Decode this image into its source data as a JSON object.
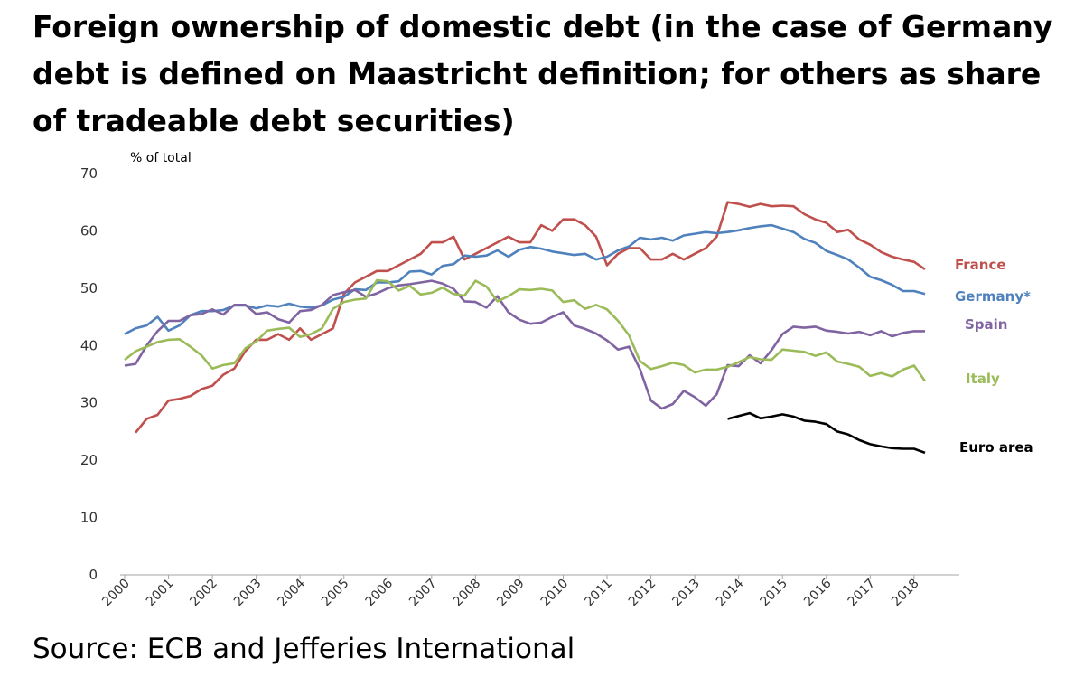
{
  "title": "Foreign ownership of domestic debt (in the case of Germany debt is defined on Maastricht definition; for others as share of tradeable debt securities)",
  "source": "Source: ECB and Jefferies International",
  "chart_data": {
    "type": "line",
    "ylabel": "% of total",
    "ylim": [
      0,
      70
    ],
    "yticks": [
      0,
      10,
      20,
      30,
      40,
      50,
      60,
      70
    ],
    "xlim": [
      2000,
      2018.8
    ],
    "xticks": [
      "2000",
      "2001",
      "2002",
      "2003",
      "2004",
      "2005",
      "2006",
      "2007",
      "2008",
      "2009",
      "2010",
      "2011",
      "2012",
      "2013",
      "2014",
      "2015",
      "2016",
      "2017",
      "2018"
    ],
    "grid": false,
    "legend": "labels at line ends (right)",
    "series": [
      {
        "name": "France",
        "color": "#c0504d",
        "x": [
          2000.25,
          2000.5,
          2000.75,
          2001.0,
          2001.25,
          2001.5,
          2001.75,
          2002.0,
          2002.25,
          2002.5,
          2002.75,
          2003.0,
          2003.25,
          2003.5,
          2003.75,
          2004.0,
          2004.25,
          2004.5,
          2004.75,
          2005.0,
          2005.25,
          2005.5,
          2005.75,
          2006.0,
          2006.25,
          2006.5,
          2006.75,
          2007.0,
          2007.25,
          2007.5,
          2007.75,
          2008.0,
          2008.25,
          2008.5,
          2008.75,
          2009.0,
          2009.25,
          2009.5,
          2009.75,
          2010.0,
          2010.25,
          2010.5,
          2010.75,
          2011.0,
          2011.25,
          2011.5,
          2011.75,
          2012.0,
          2012.25,
          2012.5,
          2012.75,
          2013.0,
          2013.25,
          2013.5,
          2013.75,
          2014.0,
          2014.25,
          2014.5,
          2014.75,
          2015.0,
          2015.25,
          2015.5,
          2015.75,
          2016.0,
          2016.25,
          2016.5,
          2016.75,
          2017.0,
          2017.25,
          2017.5,
          2017.75,
          2018.0,
          2018.25
        ],
        "y": [
          24.8,
          27.2,
          27.9,
          30.4,
          30.7,
          31.2,
          32.4,
          33.0,
          34.9,
          36.0,
          39.0,
          41.0,
          41.0,
          42.0,
          41.0,
          43.0,
          41.0,
          42.0,
          43.0,
          49.0,
          51.0,
          52.0,
          53.0,
          53.0,
          54.0,
          55.0,
          56.0,
          58.0,
          58.0,
          59.0,
          55.0,
          56.0,
          57.0,
          58.0,
          59.0,
          58.0,
          58.0,
          61.0,
          60.0,
          62.0,
          62.0,
          61.0,
          59.0,
          54.0,
          56.0,
          57.0,
          57.0,
          55.0,
          55.0,
          56.0,
          55.0,
          56.0,
          57.0,
          59.0,
          65.0,
          64.7,
          64.2,
          64.7,
          64.3,
          64.4,
          64.3,
          62.9,
          62.0,
          61.4,
          59.8,
          60.2,
          58.5,
          57.6,
          56.3,
          55.5,
          55.0,
          54.6,
          53.3
        ]
      },
      {
        "name": "Germany*",
        "color": "#4f81bd",
        "x": [
          2000.0,
          2000.25,
          2000.5,
          2000.75,
          2001.0,
          2001.25,
          2001.5,
          2001.75,
          2002.0,
          2002.25,
          2002.5,
          2002.75,
          2003.0,
          2003.25,
          2003.5,
          2003.75,
          2004.0,
          2004.25,
          2004.5,
          2004.75,
          2005.0,
          2005.25,
          2005.5,
          2005.75,
          2006.0,
          2006.25,
          2006.5,
          2006.75,
          2007.0,
          2007.25,
          2007.5,
          2007.75,
          2008.0,
          2008.25,
          2008.5,
          2008.75,
          2009.0,
          2009.25,
          2009.5,
          2009.75,
          2010.0,
          2010.25,
          2010.5,
          2010.75,
          2011.0,
          2011.25,
          2011.5,
          2011.75,
          2012.0,
          2012.25,
          2012.5,
          2012.75,
          2013.0,
          2013.25,
          2013.5,
          2013.75,
          2014.0,
          2014.25,
          2014.5,
          2014.75,
          2015.0,
          2015.25,
          2015.5,
          2015.75,
          2016.0,
          2016.25,
          2016.5,
          2016.75,
          2017.0,
          2017.25,
          2017.5,
          2017.75,
          2018.0,
          2018.25
        ],
        "y": [
          42.0,
          43.0,
          43.5,
          45.0,
          42.6,
          43.5,
          45.3,
          46.0,
          46.0,
          46.2,
          47.0,
          47.0,
          46.5,
          47.0,
          46.8,
          47.3,
          46.8,
          46.6,
          47.0,
          48.0,
          48.5,
          49.8,
          49.7,
          51.0,
          51.0,
          51.2,
          52.9,
          53.0,
          52.4,
          53.9,
          54.2,
          55.7,
          55.5,
          55.7,
          56.6,
          55.5,
          56.7,
          57.2,
          56.9,
          56.4,
          56.1,
          55.8,
          56.0,
          55.0,
          55.5,
          56.6,
          57.3,
          58.8,
          58.5,
          58.8,
          58.3,
          59.2,
          59.5,
          59.8,
          59.6,
          59.8,
          60.1,
          60.5,
          60.8,
          61.0,
          60.4,
          59.8,
          58.6,
          57.9,
          56.5,
          55.8,
          55.0,
          53.6,
          52.0,
          51.4,
          50.6,
          49.5,
          49.5,
          49.0
        ]
      },
      {
        "name": "Spain",
        "color": "#8064a2",
        "x": [
          2000.0,
          2000.25,
          2000.5,
          2000.75,
          2001.0,
          2001.25,
          2001.5,
          2001.75,
          2002.0,
          2002.25,
          2002.5,
          2002.75,
          2003.0,
          2003.25,
          2003.5,
          2003.75,
          2004.0,
          2004.25,
          2004.5,
          2004.75,
          2005.0,
          2005.25,
          2005.5,
          2005.75,
          2006.0,
          2006.25,
          2006.5,
          2006.75,
          2007.0,
          2007.25,
          2007.5,
          2007.75,
          2008.0,
          2008.25,
          2008.5,
          2008.75,
          2009.0,
          2009.25,
          2009.5,
          2009.75,
          2010.0,
          2010.25,
          2010.5,
          2010.75,
          2011.0,
          2011.25,
          2011.5,
          2011.75,
          2012.0,
          2012.25,
          2012.5,
          2012.75,
          2013.0,
          2013.25,
          2013.5,
          2013.75,
          2014.0,
          2014.25,
          2014.5,
          2014.75,
          2015.0,
          2015.25,
          2015.5,
          2015.75,
          2016.0,
          2016.25,
          2016.5,
          2016.75,
          2017.0,
          2017.25,
          2017.5,
          2017.75,
          2018.0,
          2018.25
        ],
        "y": [
          36.5,
          36.8,
          40.0,
          42.5,
          44.3,
          44.3,
          45.3,
          45.5,
          46.3,
          45.4,
          47.1,
          47.1,
          45.5,
          45.8,
          44.6,
          44.0,
          46.0,
          46.2,
          47.1,
          48.8,
          49.3,
          49.7,
          48.5,
          49.1,
          50.0,
          50.5,
          50.7,
          51.0,
          51.3,
          50.8,
          49.9,
          47.7,
          47.6,
          46.6,
          48.6,
          45.8,
          44.5,
          43.8,
          44.0,
          45.0,
          45.8,
          43.5,
          42.9,
          42.1,
          40.9,
          39.3,
          39.8,
          35.9,
          30.4,
          29.0,
          29.8,
          32.1,
          31.0,
          29.5,
          31.5,
          36.6,
          36.4,
          38.3,
          36.9,
          39.2,
          42.0,
          43.3,
          43.1,
          43.3,
          42.6,
          42.4,
          42.1,
          42.4,
          41.8,
          42.5,
          41.6,
          42.2,
          42.5,
          42.5
        ]
      },
      {
        "name": "Italy",
        "color": "#9bbb59",
        "x": [
          2000.0,
          2000.25,
          2000.5,
          2000.75,
          2001.0,
          2001.25,
          2001.5,
          2001.75,
          2002.0,
          2002.25,
          2002.5,
          2002.75,
          2003.0,
          2003.25,
          2003.5,
          2003.75,
          2004.0,
          2004.25,
          2004.5,
          2004.75,
          2005.0,
          2005.25,
          2005.5,
          2005.75,
          2006.0,
          2006.25,
          2006.5,
          2006.75,
          2007.0,
          2007.25,
          2007.5,
          2007.75,
          2008.0,
          2008.25,
          2008.5,
          2008.75,
          2009.0,
          2009.25,
          2009.5,
          2009.75,
          2010.0,
          2010.25,
          2010.5,
          2010.75,
          2011.0,
          2011.25,
          2011.5,
          2011.75,
          2012.0,
          2012.25,
          2012.5,
          2012.75,
          2013.0,
          2013.25,
          2013.5,
          2013.75,
          2014.0,
          2014.25,
          2014.5,
          2014.75,
          2015.0,
          2015.25,
          2015.5,
          2015.75,
          2016.0,
          2016.25,
          2016.5,
          2016.75,
          2017.0,
          2017.25,
          2017.5,
          2017.75,
          2018.0,
          2018.25
        ],
        "y": [
          37.5,
          39.0,
          39.8,
          40.6,
          41.0,
          41.1,
          39.8,
          38.3,
          36.0,
          36.6,
          36.9,
          39.5,
          40.7,
          42.6,
          42.9,
          43.1,
          41.5,
          42.0,
          43.0,
          46.4,
          47.6,
          48.0,
          48.2,
          51.4,
          51.2,
          49.6,
          50.4,
          48.9,
          49.2,
          50.1,
          49.0,
          48.7,
          51.3,
          50.3,
          47.7,
          48.6,
          49.8,
          49.7,
          49.9,
          49.6,
          47.6,
          47.9,
          46.4,
          47.1,
          46.3,
          44.3,
          41.8,
          37.3,
          35.9,
          36.4,
          37.0,
          36.6,
          35.3,
          35.8,
          35.8,
          36.3,
          37.1,
          38.0,
          37.6,
          37.5,
          39.3,
          39.1,
          38.9,
          38.2,
          38.8,
          37.2,
          36.8,
          36.3,
          34.7,
          35.2,
          34.6,
          35.8,
          36.5,
          33.8
        ]
      },
      {
        "name": "Euro area",
        "color": "#000000",
        "x": [
          2013.75,
          2014.0,
          2014.25,
          2014.5,
          2014.75,
          2015.0,
          2015.25,
          2015.5,
          2015.75,
          2016.0,
          2016.25,
          2016.5,
          2016.75,
          2017.0,
          2017.25,
          2017.5,
          2017.75,
          2018.0,
          2018.25
        ],
        "y": [
          27.2,
          27.7,
          28.2,
          27.3,
          27.6,
          28.0,
          27.6,
          26.9,
          26.7,
          26.3,
          25.0,
          24.5,
          23.5,
          22.8,
          22.4,
          22.1,
          22.0,
          22.0,
          21.3
        ]
      }
    ]
  }
}
